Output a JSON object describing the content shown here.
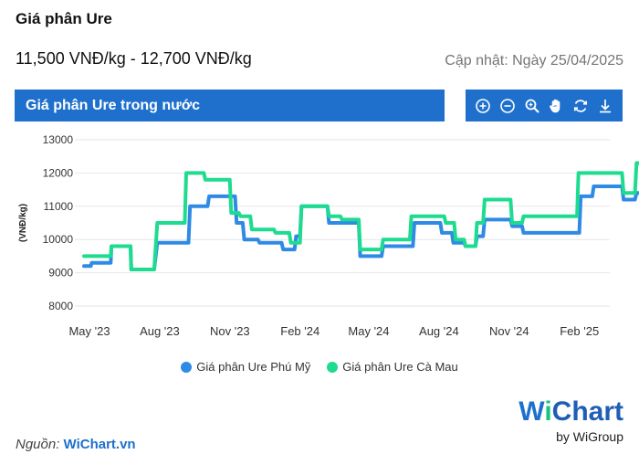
{
  "page": {
    "title": "Giá phân Ure",
    "price_range": "11,500 VNĐ/kg - 12,700 VNĐ/kg",
    "updated": "Cập nhật: Ngày 25/04/2025"
  },
  "panel": {
    "header": "Giá phân Ure trong nước",
    "tools": [
      "zoom-in-icon",
      "zoom-out-icon",
      "magnifier-icon",
      "pan-hand-icon",
      "reset-icon",
      "download-icon"
    ]
  },
  "source": {
    "label": "Nguồn:",
    "link": "WiChart.vn"
  },
  "brand": {
    "w": "W",
    "i": "i",
    "rest": "Chart",
    "by": "by WiGroup"
  },
  "colors": {
    "accent": "#1e70cc",
    "series1": "#2f8ae6",
    "series2": "#1ddc8f",
    "grid": "#e6e6e6"
  },
  "chart_data": {
    "type": "line",
    "title": "",
    "ylabel": "(VNĐ/kg)",
    "ylim": [
      8000,
      13000
    ],
    "yticks": [
      8000,
      9000,
      10000,
      11000,
      12000,
      13000
    ],
    "xticks": [
      "May '23",
      "Aug '23",
      "Nov '23",
      "Feb '24",
      "May '24",
      "Aug '24",
      "Nov '24",
      "Feb '25"
    ],
    "x_start": "2023-05-01",
    "grid": "horizontal",
    "legend": "bottom",
    "series": [
      {
        "name": "Giá phân Ure Phú Mỹ",
        "color": "#2f8ae6",
        "points": [
          [
            "2023-05-01",
            9200
          ],
          [
            "2023-05-10",
            9200
          ],
          [
            "2023-05-11",
            9300
          ],
          [
            "2023-06-05",
            9300
          ],
          [
            "2023-06-06",
            9800
          ],
          [
            "2023-07-01",
            9800
          ],
          [
            "2023-07-02",
            9100
          ],
          [
            "2023-08-01",
            9100
          ],
          [
            "2023-08-05",
            9900
          ],
          [
            "2023-09-15",
            9900
          ],
          [
            "2023-09-17",
            11000
          ],
          [
            "2023-10-10",
            11000
          ],
          [
            "2023-10-12",
            11300
          ],
          [
            "2023-11-15",
            11300
          ],
          [
            "2023-11-17",
            10500
          ],
          [
            "2023-11-25",
            10500
          ],
          [
            "2023-11-27",
            10000
          ],
          [
            "2023-12-15",
            10000
          ],
          [
            "2023-12-17",
            9900
          ],
          [
            "2024-01-15",
            9900
          ],
          [
            "2024-01-17",
            9700
          ],
          [
            "2024-02-01",
            9700
          ],
          [
            "2024-02-03",
            10100
          ],
          [
            "2024-02-08",
            10100
          ],
          [
            "2024-02-10",
            11000
          ],
          [
            "2024-03-15",
            11000
          ],
          [
            "2024-03-17",
            10500
          ],
          [
            "2024-04-25",
            10500
          ],
          [
            "2024-04-27",
            9500
          ],
          [
            "2024-05-25",
            9500
          ],
          [
            "2024-05-27",
            9800
          ],
          [
            "2024-07-05",
            9800
          ],
          [
            "2024-07-07",
            10500
          ],
          [
            "2024-08-10",
            10500
          ],
          [
            "2024-08-12",
            10200
          ],
          [
            "2024-08-25",
            10200
          ],
          [
            "2024-08-27",
            9900
          ],
          [
            "2024-09-10",
            9900
          ],
          [
            "2024-09-12",
            9800
          ],
          [
            "2024-09-25",
            9800
          ],
          [
            "2024-09-27",
            10100
          ],
          [
            "2024-10-05",
            10100
          ],
          [
            "2024-10-07",
            10600
          ],
          [
            "2024-11-10",
            10600
          ],
          [
            "2024-11-12",
            10400
          ],
          [
            "2024-11-25",
            10400
          ],
          [
            "2024-11-27",
            10200
          ],
          [
            "2025-02-08",
            10200
          ],
          [
            "2025-02-10",
            11300
          ],
          [
            "2025-02-25",
            11300
          ],
          [
            "2025-02-27",
            11600
          ],
          [
            "2025-04-05",
            11600
          ],
          [
            "2025-04-07",
            11200
          ],
          [
            "2025-04-22",
            11200
          ],
          [
            "2025-04-24",
            11400
          ],
          [
            "2025-05-08",
            11400
          ],
          [
            "2025-05-10",
            11500
          ],
          [
            "2025-05-12",
            11400
          ]
        ]
      },
      {
        "name": "Giá phân Ure Cà Mau",
        "color": "#1ddc8f",
        "points": [
          [
            "2023-05-01",
            9500
          ],
          [
            "2023-06-05",
            9500
          ],
          [
            "2023-06-06",
            9800
          ],
          [
            "2023-07-01",
            9800
          ],
          [
            "2023-07-02",
            9100
          ],
          [
            "2023-08-01",
            9100
          ],
          [
            "2023-08-05",
            10500
          ],
          [
            "2023-09-10",
            10500
          ],
          [
            "2023-09-12",
            12000
          ],
          [
            "2023-10-05",
            12000
          ],
          [
            "2023-10-07",
            11800
          ],
          [
            "2023-11-08",
            11800
          ],
          [
            "2023-11-10",
            10800
          ],
          [
            "2023-11-20",
            10800
          ],
          [
            "2023-11-22",
            10700
          ],
          [
            "2023-12-05",
            10700
          ],
          [
            "2023-12-07",
            10300
          ],
          [
            "2024-01-05",
            10300
          ],
          [
            "2024-01-07",
            10200
          ],
          [
            "2024-01-25",
            10200
          ],
          [
            "2024-01-27",
            9900
          ],
          [
            "2024-02-08",
            9900
          ],
          [
            "2024-02-10",
            11000
          ],
          [
            "2024-03-15",
            11000
          ],
          [
            "2024-03-17",
            10700
          ],
          [
            "2024-04-01",
            10700
          ],
          [
            "2024-04-03",
            10600
          ],
          [
            "2024-04-25",
            10600
          ],
          [
            "2024-04-27",
            9700
          ],
          [
            "2024-05-25",
            9700
          ],
          [
            "2024-05-27",
            10000
          ],
          [
            "2024-07-01",
            10000
          ],
          [
            "2024-07-03",
            10700
          ],
          [
            "2024-08-15",
            10700
          ],
          [
            "2024-08-17",
            10500
          ],
          [
            "2024-08-28",
            10500
          ],
          [
            "2024-08-30",
            10000
          ],
          [
            "2024-09-10",
            10000
          ],
          [
            "2024-09-12",
            9800
          ],
          [
            "2024-09-25",
            9800
          ],
          [
            "2024-09-27",
            10500
          ],
          [
            "2024-10-05",
            10500
          ],
          [
            "2024-10-07",
            11200
          ],
          [
            "2024-11-10",
            11200
          ],
          [
            "2024-11-12",
            10500
          ],
          [
            "2024-11-25",
            10500
          ],
          [
            "2024-11-27",
            10700
          ],
          [
            "2025-02-05",
            10700
          ],
          [
            "2025-02-07",
            12000
          ],
          [
            "2025-04-05",
            12000
          ],
          [
            "2025-04-07",
            11400
          ],
          [
            "2025-04-22",
            11400
          ],
          [
            "2025-04-24",
            12300
          ],
          [
            "2025-05-05",
            12300
          ],
          [
            "2025-05-07",
            12700
          ],
          [
            "2025-05-10",
            12600
          ],
          [
            "2025-05-12",
            12300
          ]
        ]
      }
    ]
  }
}
